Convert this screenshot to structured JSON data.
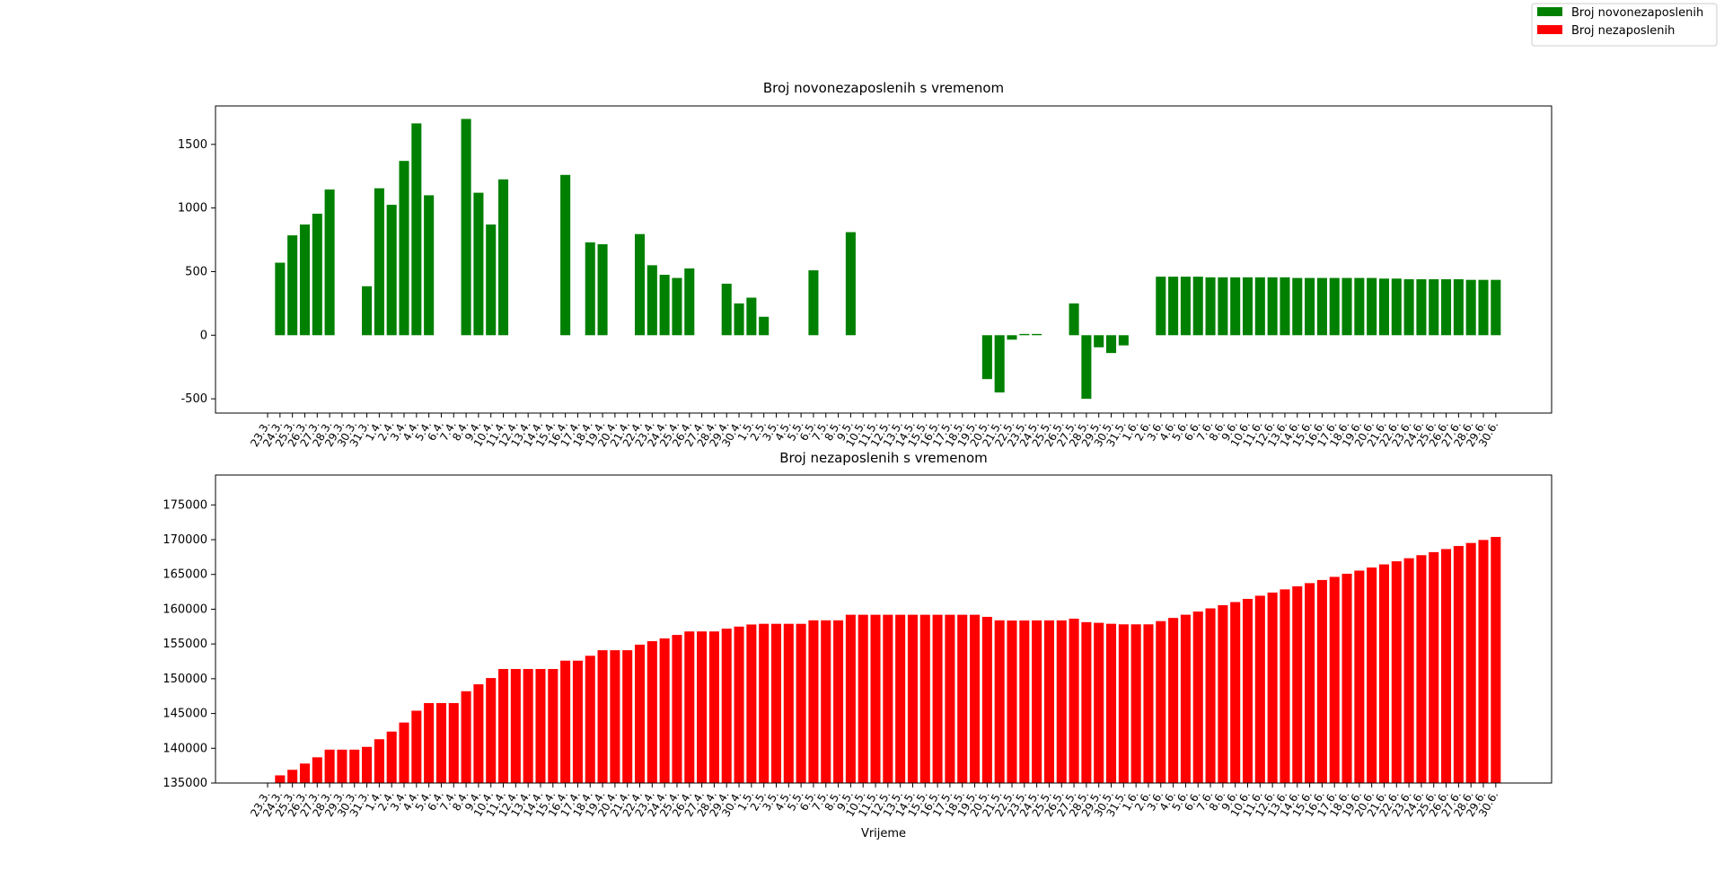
{
  "chart_data": [
    {
      "type": "bar",
      "title": "Broj novonezaposlenih s vremenom",
      "categories": [
        "23.3.",
        "24.3.",
        "25.3.",
        "26.3.",
        "27.3.",
        "28.3.",
        "29.3.",
        "30.3.",
        "31.3.",
        "1.4.",
        "2.4.",
        "3.4.",
        "4.4.",
        "5.4.",
        "6.4.",
        "7.4.",
        "8.4.",
        "9.4.",
        "10.4.",
        "11.4.",
        "12.4.",
        "13.4.",
        "14.4.",
        "15.4.",
        "16.4.",
        "17.4.",
        "18.4.",
        "19.4.",
        "20.4.",
        "21.4.",
        "22.4.",
        "23.4.",
        "24.4.",
        "25.4.",
        "26.4.",
        "27.4.",
        "28.4.",
        "29.4.",
        "30.4.",
        "1.5.",
        "2.5.",
        "3.5.",
        "4.5.",
        "5.5.",
        "6.5.",
        "7.5.",
        "8.5.",
        "9.5.",
        "10.5.",
        "11.5.",
        "12.5.",
        "13.5.",
        "14.5.",
        "15.5.",
        "16.5.",
        "17.5.",
        "18.5.",
        "19.5.",
        "20.5.",
        "21.5.",
        "22.5.",
        "23.5.",
        "24.5.",
        "25.5.",
        "26.5.",
        "27.5.",
        "28.5.",
        "29.5.",
        "30.5.",
        "31.5.",
        "1.6.",
        "2.6.",
        "3.6.",
        "4.6.",
        "5.6.",
        "6.6.",
        "7.6.",
        "8.6.",
        "9.6.",
        "10.6.",
        "11.6.",
        "12.6.",
        "13.6.",
        "14.6.",
        "15.6.",
        "16.6.",
        "17.6.",
        "18.6.",
        "19.6.",
        "20.6.",
        "21.6.",
        "22.6.",
        "23.6.",
        "24.6.",
        "25.6.",
        "26.6.",
        "27.6.",
        "28.6.",
        "29.6.",
        "30.6."
      ],
      "series": [
        {
          "name": "Broj novonezaposlenih",
          "color": "#008000",
          "values": [
            null,
            570,
            785,
            870,
            955,
            1145,
            0,
            0,
            385,
            1155,
            1025,
            1370,
            1665,
            1100,
            0,
            0,
            1700,
            1120,
            870,
            1225,
            0,
            0,
            0,
            0,
            1260,
            0,
            730,
            715,
            0,
            0,
            795,
            550,
            475,
            450,
            525,
            0,
            0,
            405,
            250,
            295,
            145,
            0,
            0,
            0,
            510,
            0,
            0,
            810,
            0,
            0,
            0,
            0,
            0,
            0,
            0,
            0,
            0,
            0,
            -345,
            -450,
            -35,
            10,
            10,
            0,
            0,
            250,
            -500,
            -95,
            -140,
            -80,
            0,
            0,
            460,
            460,
            460,
            460,
            455,
            455,
            455,
            455,
            455,
            455,
            455,
            450,
            450,
            450,
            450,
            450,
            450,
            450,
            445,
            445,
            440,
            440,
            440,
            440,
            440,
            435,
            435,
            435
          ]
        }
      ],
      "ylim": [
        -612,
        1802
      ],
      "yticks": [
        -500,
        0,
        500,
        1000,
        1500
      ]
    },
    {
      "type": "bar",
      "title": "Broj nezaposlenih s vremenom",
      "x_label": "Vrijeme",
      "categories": [
        "23.3.",
        "24.3.",
        "25.3.",
        "26.3.",
        "27.3.",
        "28.3.",
        "29.3.",
        "30.3.",
        "31.3.",
        "1.4.",
        "2.4.",
        "3.4.",
        "4.4.",
        "5.4.",
        "6.4.",
        "7.4.",
        "8.4.",
        "9.4.",
        "10.4.",
        "11.4.",
        "12.4.",
        "13.4.",
        "14.4.",
        "15.4.",
        "16.4.",
        "17.4.",
        "18.4.",
        "19.4.",
        "20.4.",
        "21.4.",
        "22.4.",
        "23.4.",
        "24.4.",
        "25.4.",
        "26.4.",
        "27.4.",
        "28.4.",
        "29.4.",
        "30.4.",
        "1.5.",
        "2.5.",
        "3.5.",
        "4.5.",
        "5.5.",
        "6.5.",
        "7.5.",
        "8.5.",
        "9.5.",
        "10.5.",
        "11.5.",
        "12.5.",
        "13.5.",
        "14.5.",
        "15.5.",
        "16.5.",
        "17.5.",
        "18.5.",
        "19.5.",
        "20.5.",
        "21.5.",
        "22.5.",
        "23.5.",
        "24.5.",
        "25.5.",
        "26.5.",
        "27.5.",
        "28.5.",
        "29.5.",
        "30.5.",
        "31.5.",
        "1.6.",
        "2.6.",
        "3.6.",
        "4.6.",
        "5.6.",
        "6.6.",
        "7.6.",
        "8.6.",
        "9.6.",
        "10.6.",
        "11.6.",
        "12.6.",
        "13.6.",
        "14.6.",
        "15.6.",
        "16.6.",
        "17.6.",
        "18.6.",
        "19.6.",
        "20.6.",
        "21.6.",
        "22.6.",
        "23.6.",
        "24.6.",
        "25.6.",
        "26.6.",
        "27.6.",
        "28.6.",
        "29.6.",
        "30.6."
      ],
      "series": [
        {
          "name": "Broj nezaposlenih",
          "color": "#ff0000",
          "values": [
            null,
            136100,
            136900,
            137800,
            138700,
            139800,
            139800,
            139800,
            140200,
            141300,
            142400,
            143700,
            145400,
            146500,
            146500,
            146500,
            148200,
            149200,
            150100,
            151400,
            151400,
            151400,
            151400,
            151400,
            152600,
            152600,
            153300,
            154100,
            154100,
            154100,
            154900,
            155400,
            155800,
            156300,
            156800,
            156800,
            156800,
            157200,
            157500,
            157800,
            157900,
            157900,
            157900,
            157900,
            158400,
            158400,
            158400,
            159200,
            159200,
            159200,
            159200,
            159200,
            159200,
            159200,
            159200,
            159200,
            159200,
            159200,
            158900,
            158400,
            158370,
            158380,
            158390,
            158390,
            158390,
            158640,
            158140,
            158045,
            157905,
            157825,
            157825,
            157825,
            158285,
            158745,
            159205,
            159665,
            160120,
            160575,
            161030,
            161485,
            161940,
            162395,
            162850,
            163300,
            163750,
            164200,
            164650,
            165100,
            165550,
            166000,
            166445,
            166890,
            167330,
            167770,
            168210,
            168650,
            169090,
            169525,
            169960,
            170395
          ]
        }
      ],
      "ylim": [
        135000,
        179300
      ],
      "yticks": [
        135000,
        140000,
        145000,
        150000,
        155000,
        160000,
        165000,
        170000,
        175000
      ]
    }
  ]
}
